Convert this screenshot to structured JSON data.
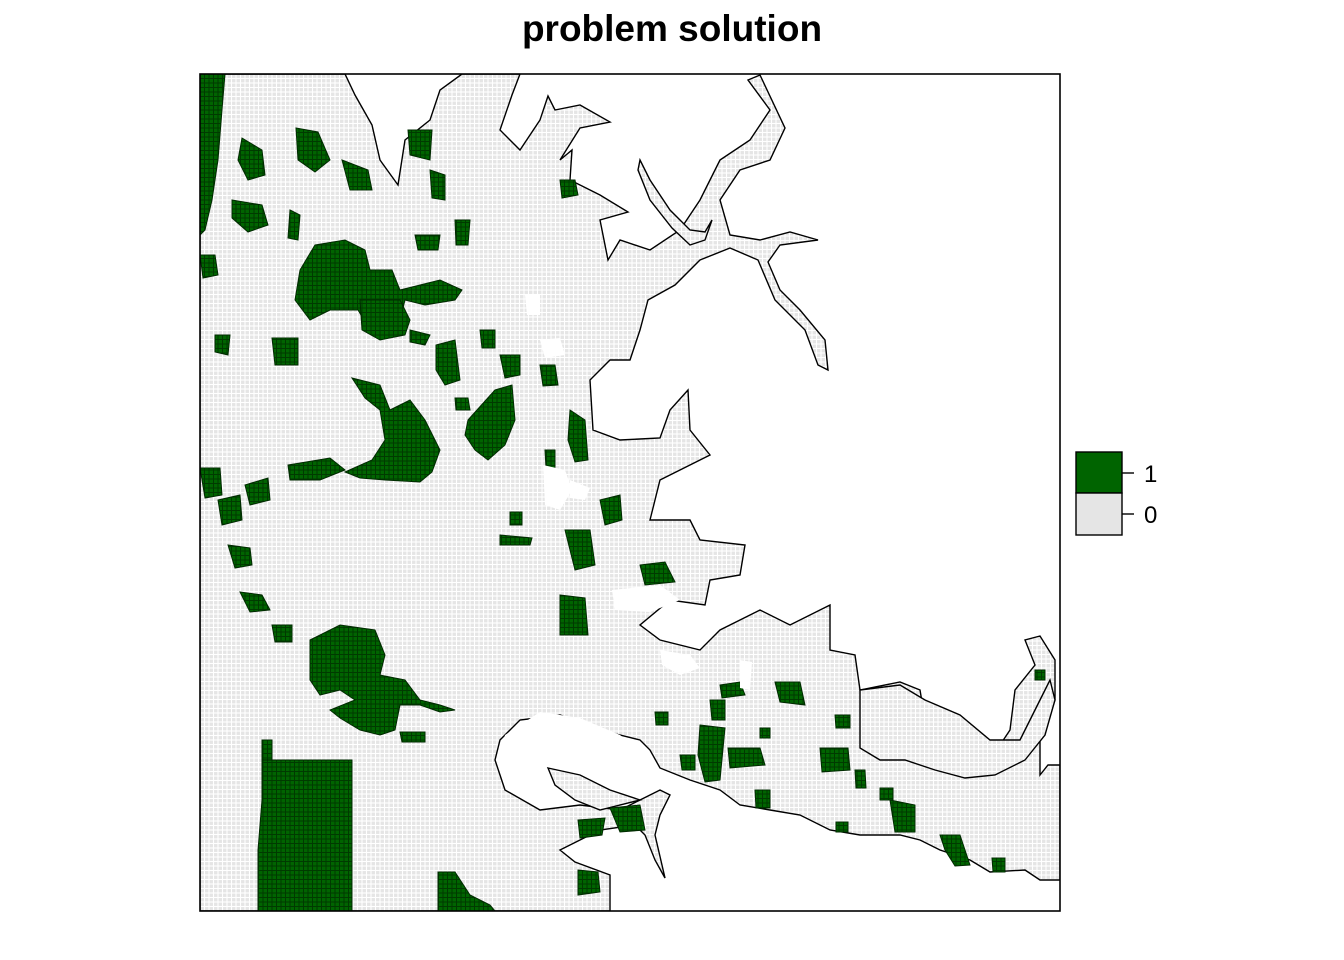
{
  "title": "problem solution",
  "colors": {
    "selected": "#006400",
    "not_selected": "#e5e5e5",
    "cell_border": "#000000",
    "background": "#ffffff"
  },
  "legend": {
    "items": [
      {
        "value": "1",
        "color": "#006400"
      },
      {
        "value": "0",
        "color": "#e5e5e5"
      }
    ]
  },
  "chart_data": {
    "type": "heatmap",
    "title": "problem solution",
    "values_shown": [
      "0",
      "1"
    ],
    "value_colors": {
      "1": "#006400",
      "0": "#e5e5e5"
    }
  }
}
